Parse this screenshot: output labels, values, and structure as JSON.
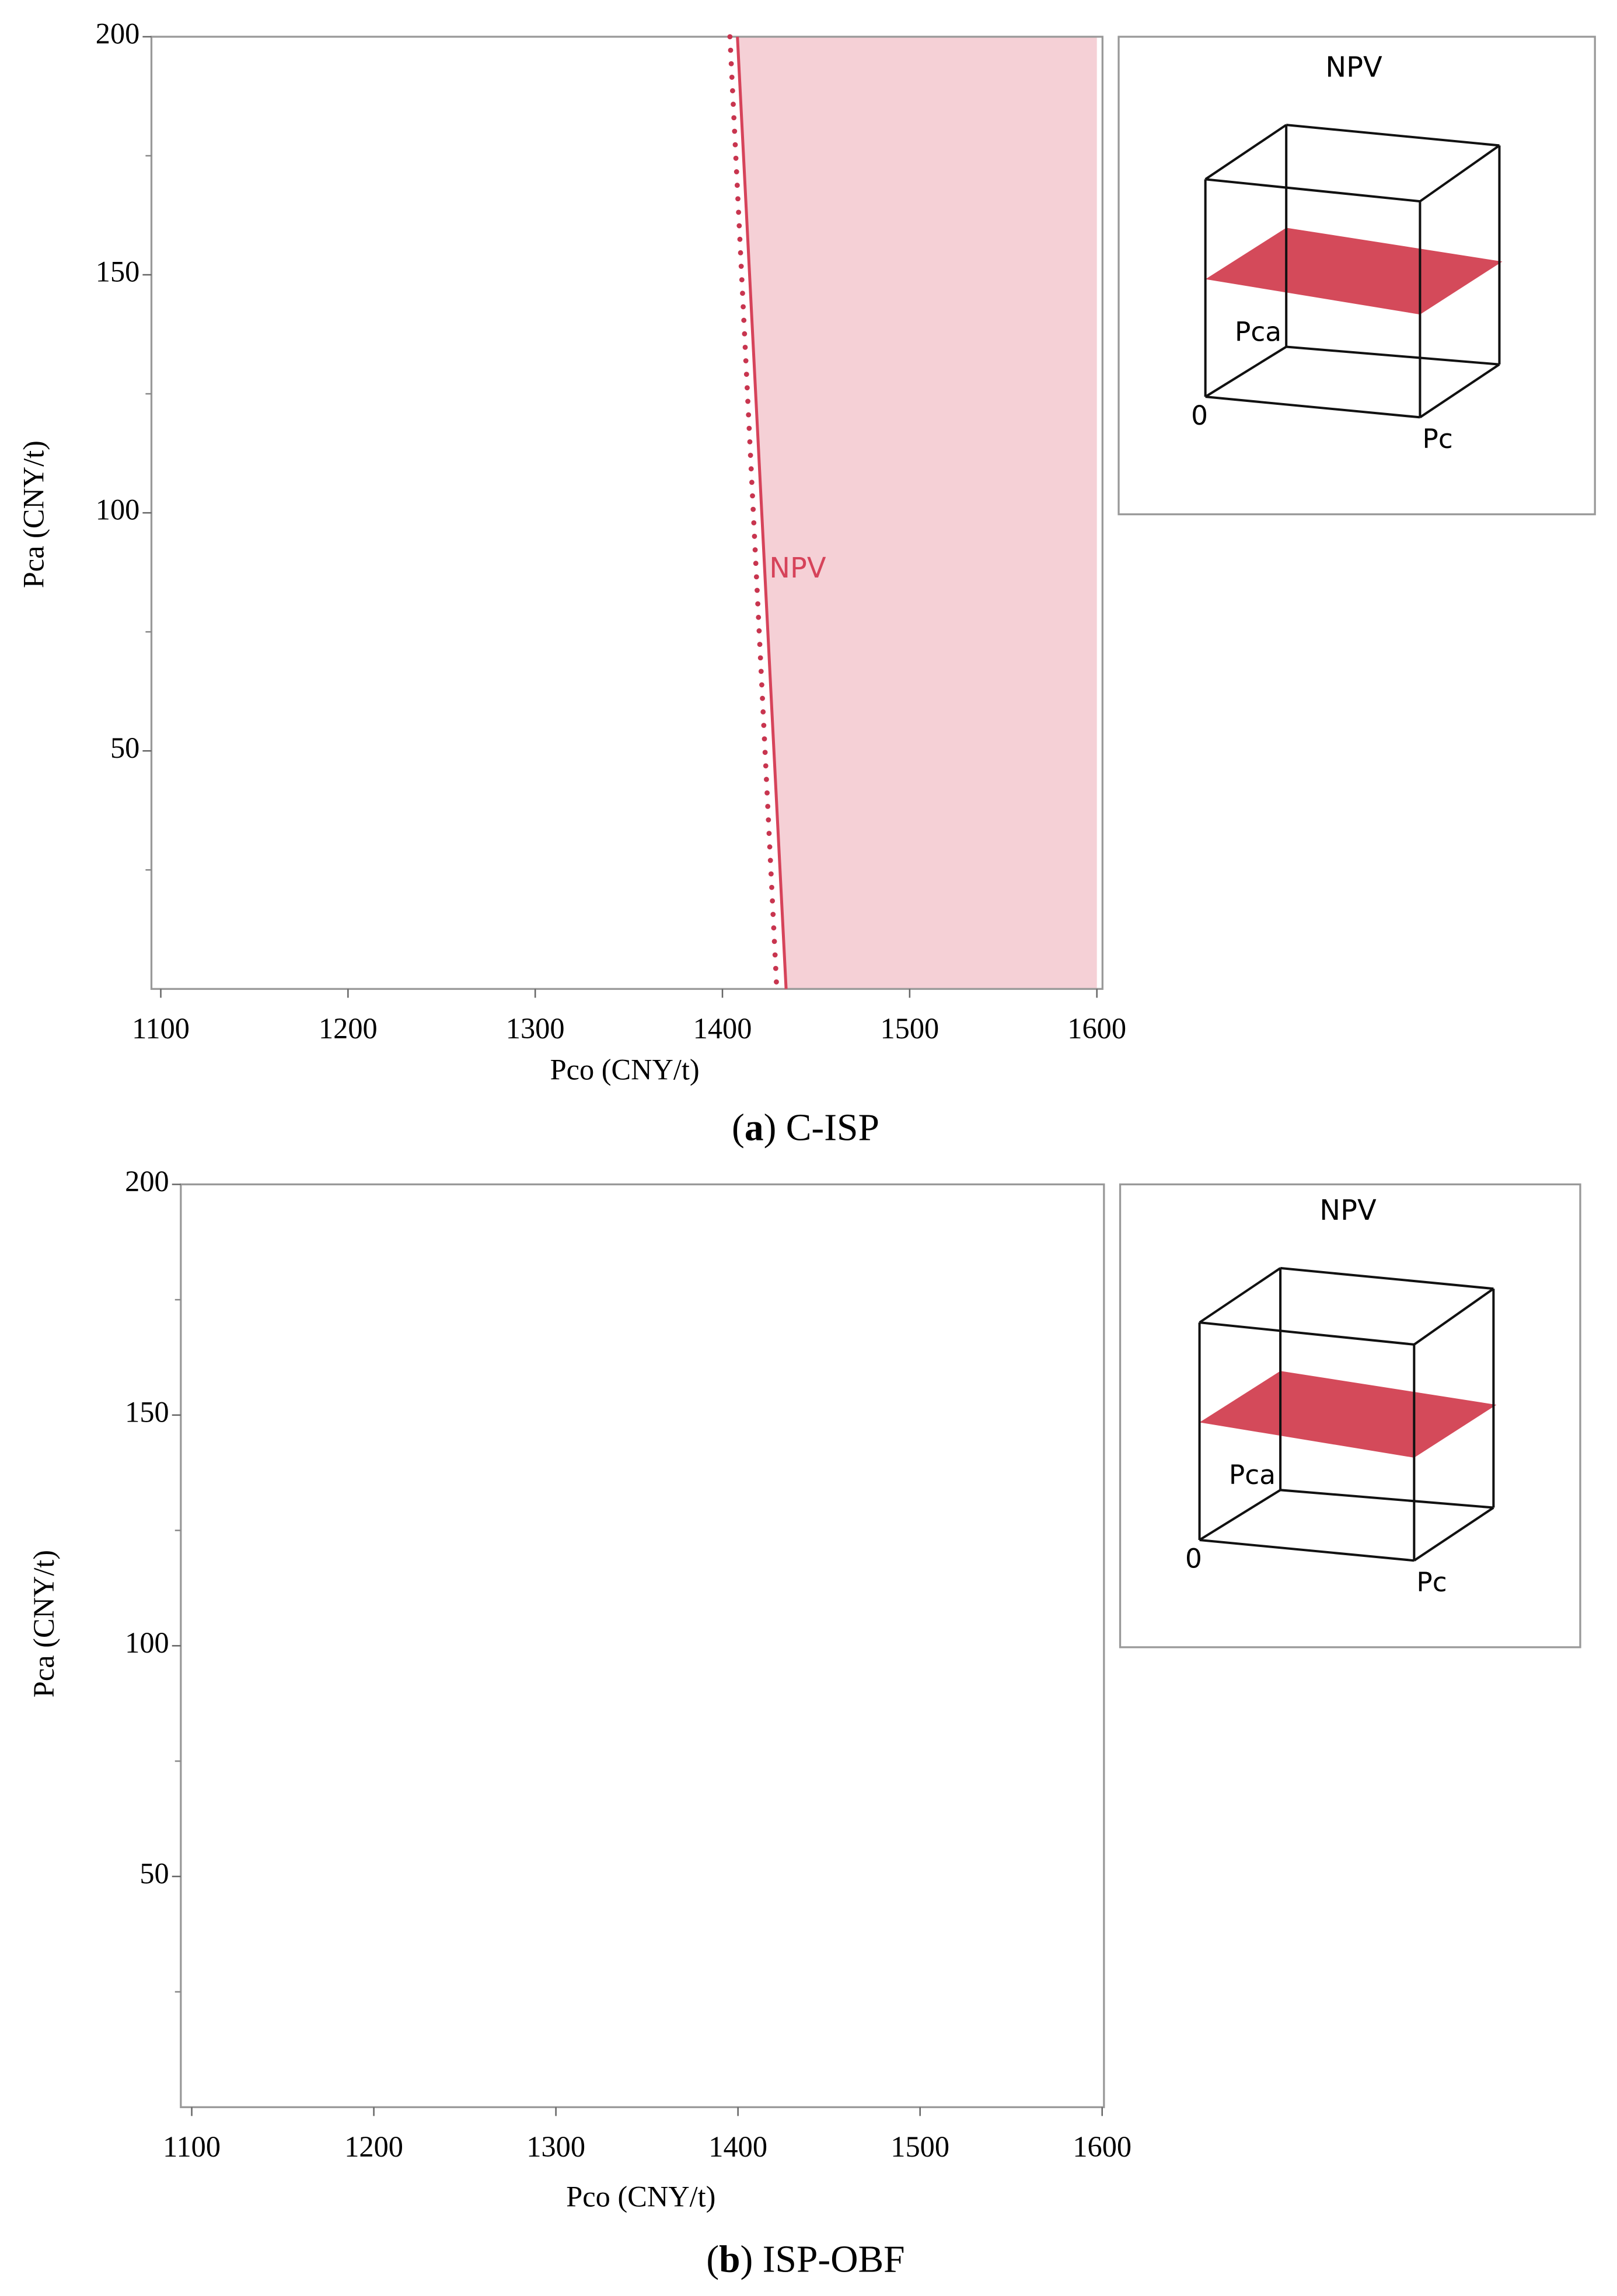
{
  "chart_data": [
    {
      "type": "contour",
      "xlabel": "Pco (CNY/t)",
      "ylabel": "Pca (CNY/t)",
      "xlim": [
        1095,
        1603
      ],
      "ylim": [
        0,
        200
      ],
      "xticks": [
        1100,
        1200,
        1300,
        1400,
        1500,
        1600
      ],
      "yticks": [
        50,
        100,
        150,
        200
      ],
      "yminorticks": [
        25,
        75,
        125,
        175
      ],
      "series": [
        {
          "name": "NPV",
          "color": "#d6435a",
          "style": "solid",
          "x": [
            1408,
            1434
          ],
          "y": [
            200,
            0
          ],
          "fill_to_x": 1600,
          "fill_color": "#f5d0d6",
          "label_at": [
            1425,
            88
          ]
        },
        {
          "color": "#c8354f",
          "style": "dotted",
          "x": [
            1404,
            1429
          ],
          "y": [
            200,
            0
          ]
        }
      ],
      "inset": {
        "title": "NPV",
        "plane_color": "#d44a5a",
        "labels": [
          "Pca",
          "0",
          "Pc"
        ]
      },
      "caption": [
        "(",
        "a",
        ") C-ISP"
      ]
    },
    {
      "type": "contour",
      "xlabel": "Pco (CNY/t)",
      "ylabel": "Pca (CNY/t)",
      "xlim": [
        1094,
        1601
      ],
      "ylim": [
        0,
        200
      ],
      "xticks": [
        1100,
        1200,
        1300,
        1400,
        1500,
        1600
      ],
      "yticks": [
        50,
        100,
        150,
        200
      ],
      "yminorticks": [
        25,
        75,
        125,
        175
      ],
      "series": [],
      "inset": {
        "title": "NPV",
        "plane_color": "#d44a5a",
        "labels": [
          "Pca",
          "0",
          "Pc"
        ]
      },
      "caption": [
        "(",
        "b",
        ") ISP-OBF"
      ]
    }
  ]
}
